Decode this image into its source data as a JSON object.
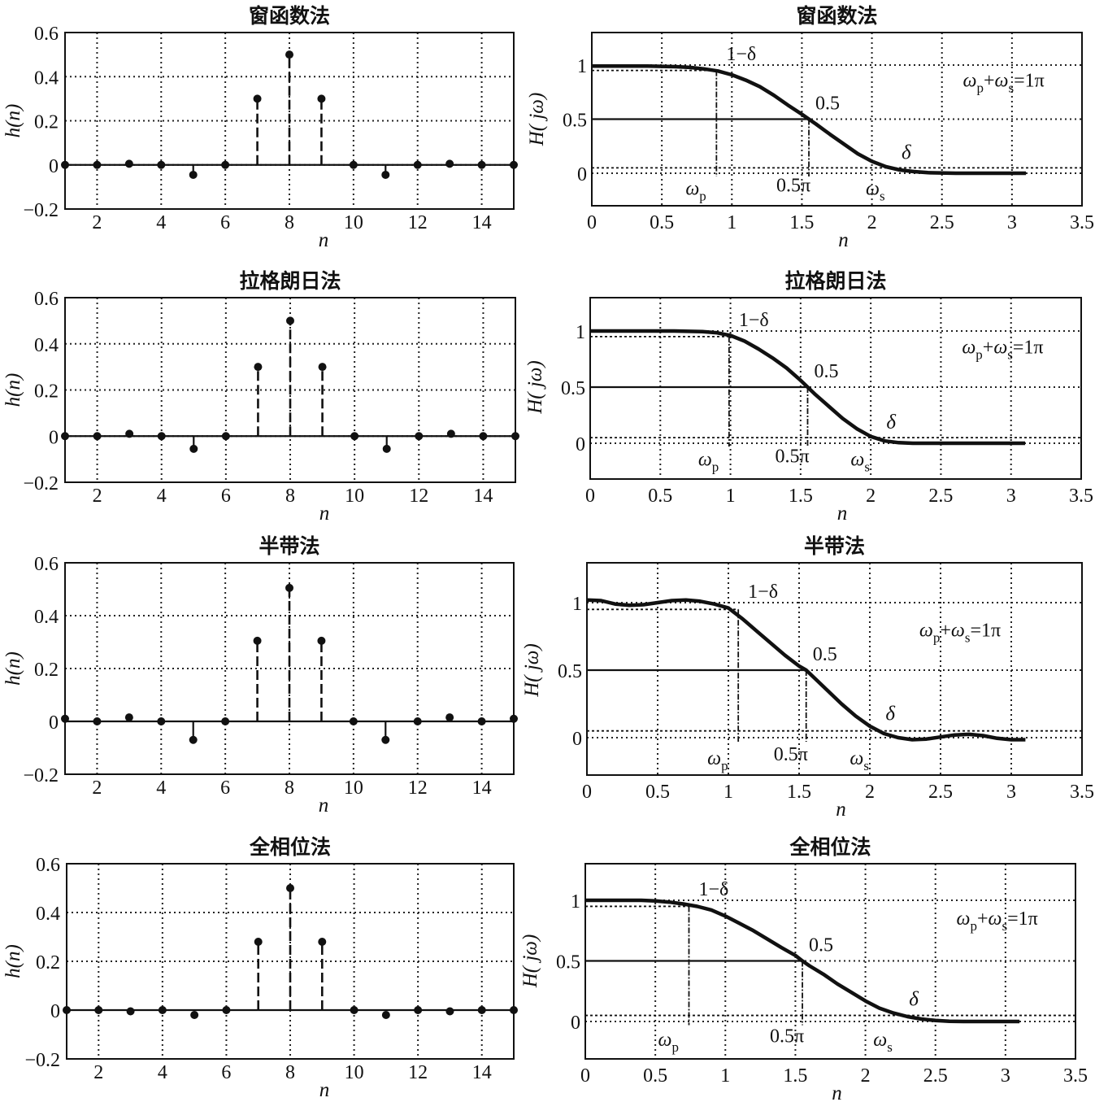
{
  "colors": {
    "ink": "#111111",
    "background": "#ffffff"
  },
  "chart_data": [
    {
      "id": "impulse-window",
      "type": "stem",
      "title": "窗函数法",
      "xlabel": "n",
      "ylabel": "h(n)",
      "xlim": [
        1,
        15
      ],
      "ylim": [
        -0.2,
        0.6
      ],
      "xticks": [
        "2",
        "4",
        "6",
        "8",
        "10",
        "12",
        "14"
      ],
      "yticks": [
        "0.6",
        "0.4",
        "0.2",
        "0",
        "−0.2"
      ],
      "x": [
        1,
        2,
        3,
        4,
        5,
        6,
        7,
        8,
        9,
        10,
        11,
        12,
        13,
        14,
        15
      ],
      "values": [
        0,
        0,
        0.005,
        0,
        -0.045,
        0,
        0.3,
        0.5,
        0.3,
        0,
        -0.045,
        0,
        0.005,
        0,
        0
      ],
      "grid": true
    },
    {
      "id": "response-window",
      "type": "line",
      "title": "窗函数法",
      "xlabel": "n",
      "ylabel": "H( jω)",
      "xlim": [
        0,
        3.5
      ],
      "ylim": [
        -0.25,
        1.25
      ],
      "xticks": [
        "0",
        "0.5",
        "1",
        "1.5",
        "2",
        "2.5",
        "3",
        "3.5"
      ],
      "yticks": [
        "1",
        "0.5",
        "0"
      ],
      "x": [
        0,
        0.2,
        0.4,
        0.6,
        0.7,
        0.8,
        0.9,
        1.0,
        1.1,
        1.2,
        1.3,
        1.4,
        1.5,
        1.55,
        1.6,
        1.7,
        1.8,
        1.9,
        2.0,
        2.1,
        2.2,
        2.3,
        2.4,
        2.6,
        2.8,
        3.1
      ],
      "y": [
        0.99,
        0.99,
        0.99,
        0.985,
        0.978,
        0.965,
        0.945,
        0.91,
        0.86,
        0.8,
        0.72,
        0.63,
        0.545,
        0.5,
        0.455,
        0.36,
        0.27,
        0.18,
        0.11,
        0.06,
        0.03,
        0.015,
        0.005,
        0,
        0,
        0
      ],
      "grid": true,
      "reference_lines": {
        "passband_y": 0.95,
        "half_y": 0.5,
        "stopband_y": 0.05,
        "omega_p_x": 0.89,
        "half_x": 1.55
      },
      "annotations": {
        "one_minus_delta": "1−δ",
        "half": "0.5",
        "delta": "δ",
        "omega_p": "ωp",
        "half_pi": "0.5π",
        "omega_s": "ωs",
        "formula": "ωp+ωs=1π"
      }
    },
    {
      "id": "impulse-lagrange",
      "type": "stem",
      "title": "拉格朗日法",
      "xlabel": "n",
      "ylabel": "h(n)",
      "xlim": [
        1,
        15
      ],
      "ylim": [
        -0.2,
        0.6
      ],
      "xticks": [
        "2",
        "4",
        "6",
        "8",
        "10",
        "12",
        "14"
      ],
      "yticks": [
        "0.6",
        "0.4",
        "0.2",
        "0",
        "−0.2"
      ],
      "x": [
        1,
        2,
        3,
        4,
        5,
        6,
        7,
        8,
        9,
        10,
        11,
        12,
        13,
        14,
        15
      ],
      "values": [
        0,
        0,
        0.01,
        0,
        -0.055,
        0,
        0.3,
        0.5,
        0.3,
        0,
        -0.055,
        0,
        0.01,
        0,
        0
      ],
      "grid": true
    },
    {
      "id": "response-lagrange",
      "type": "line",
      "title": "拉格朗日法",
      "xlabel": "n",
      "ylabel": "H( jω)",
      "xlim": [
        0,
        3.5
      ],
      "ylim": [
        -0.25,
        1.25
      ],
      "xticks": [
        "0",
        "0.5",
        "1",
        "1.5",
        "2",
        "2.5",
        "3",
        "3.5"
      ],
      "yticks": [
        "1",
        "0.5",
        "0"
      ],
      "x": [
        0,
        0.3,
        0.6,
        0.8,
        0.9,
        1.0,
        1.1,
        1.2,
        1.3,
        1.4,
        1.5,
        1.55,
        1.6,
        1.7,
        1.8,
        1.9,
        2.0,
        2.1,
        2.2,
        2.3,
        2.5,
        3.1
      ],
      "y": [
        1.0,
        1.0,
        1.0,
        0.995,
        0.985,
        0.96,
        0.91,
        0.84,
        0.76,
        0.67,
        0.56,
        0.5,
        0.44,
        0.33,
        0.22,
        0.13,
        0.06,
        0.02,
        0.005,
        0,
        0,
        0
      ],
      "grid": true,
      "reference_lines": {
        "passband_y": 0.95,
        "half_y": 0.5,
        "stopband_y": 0.05,
        "omega_p_x": 0.99,
        "half_x": 1.55
      },
      "annotations": {
        "one_minus_delta": "1−δ",
        "half": "0.5",
        "delta": "δ",
        "omega_p": "ωp",
        "half_pi": "0.5π",
        "omega_s": "ωs",
        "formula": "ωp+ωs=1π"
      }
    },
    {
      "id": "impulse-halfband",
      "type": "stem",
      "title": "半带法",
      "xlabel": "n",
      "ylabel": "h(n)",
      "xlim": [
        1,
        15
      ],
      "ylim": [
        -0.2,
        0.6
      ],
      "xticks": [
        "2",
        "4",
        "6",
        "8",
        "10",
        "12",
        "14"
      ],
      "yticks": [
        "0.6",
        "0.4",
        "0.2",
        "0",
        "−0.2"
      ],
      "x": [
        1,
        2,
        3,
        4,
        5,
        6,
        7,
        8,
        9,
        10,
        11,
        12,
        13,
        14,
        15
      ],
      "values": [
        0.01,
        0,
        0.015,
        0,
        -0.07,
        0,
        0.305,
        0.505,
        0.305,
        0,
        -0.07,
        0,
        0.015,
        0,
        0.01
      ],
      "grid": true
    },
    {
      "id": "response-halfband",
      "type": "line",
      "title": "半带法",
      "xlabel": "n",
      "ylabel": "H( jω)",
      "xlim": [
        0,
        3.5
      ],
      "ylim": [
        -0.25,
        1.25
      ],
      "xticks": [
        "0",
        "0.5",
        "1",
        "1.5",
        "2",
        "2.5",
        "3",
        "3.5"
      ],
      "yticks": [
        "1",
        "0.5",
        "0"
      ],
      "x": [
        0,
        0.1,
        0.2,
        0.3,
        0.4,
        0.5,
        0.6,
        0.7,
        0.8,
        0.9,
        1.0,
        1.1,
        1.2,
        1.3,
        1.4,
        1.5,
        1.55,
        1.6,
        1.7,
        1.8,
        1.9,
        2.0,
        2.1,
        2.2,
        2.3,
        2.4,
        2.5,
        2.6,
        2.7,
        2.8,
        2.9,
        3.0,
        3.1
      ],
      "y": [
        1.02,
        1.015,
        0.99,
        0.98,
        0.985,
        1.0,
        1.015,
        1.02,
        1.01,
        0.99,
        0.96,
        0.88,
        0.79,
        0.7,
        0.61,
        0.53,
        0.5,
        0.45,
        0.35,
        0.25,
        0.16,
        0.085,
        0.03,
        0.0,
        -0.015,
        -0.01,
        0.005,
        0.02,
        0.025,
        0.015,
        -0.005,
        -0.015,
        -0.015
      ],
      "grid": true,
      "reference_lines": {
        "passband_y": 0.95,
        "half_y": 0.5,
        "stopband_y": 0.05,
        "omega_p_x": 1.07,
        "half_x": 1.55
      },
      "annotations": {
        "one_minus_delta": "1−δ",
        "half": "0.5",
        "delta": "δ",
        "omega_p": "ωp",
        "half_pi": "0.5π",
        "omega_s": "ωs",
        "formula": "ωp+ωs=1π"
      }
    },
    {
      "id": "impulse-allphase",
      "type": "stem",
      "title": "全相位法",
      "xlabel": "n",
      "ylabel": "h(n)",
      "xlim": [
        1,
        15
      ],
      "ylim": [
        -0.2,
        0.6
      ],
      "xticks": [
        "2",
        "4",
        "6",
        "8",
        "10",
        "12",
        "14"
      ],
      "yticks": [
        "0.6",
        "0.4",
        "0.2",
        "0",
        "−0.2"
      ],
      "x": [
        1,
        2,
        3,
        4,
        5,
        6,
        7,
        8,
        9,
        10,
        11,
        12,
        13,
        14,
        15
      ],
      "values": [
        0,
        0,
        -0.005,
        0,
        -0.02,
        0,
        0.28,
        0.5,
        0.28,
        0,
        -0.02,
        0,
        -0.005,
        0,
        0
      ],
      "grid": true
    },
    {
      "id": "response-allphase",
      "type": "line",
      "title": "全相位法",
      "xlabel": "n",
      "ylabel": "H( jω)",
      "xlim": [
        0,
        3.5
      ],
      "ylim": [
        -0.25,
        1.25
      ],
      "xticks": [
        "0",
        "0.5",
        "1",
        "1.5",
        "2",
        "2.5",
        "3",
        "3.5"
      ],
      "yticks": [
        "1",
        "0.5",
        "0"
      ],
      "x": [
        0,
        0.2,
        0.4,
        0.5,
        0.6,
        0.7,
        0.8,
        0.9,
        1.0,
        1.1,
        1.2,
        1.3,
        1.4,
        1.5,
        1.55,
        1.6,
        1.7,
        1.8,
        1.9,
        2.0,
        2.1,
        2.2,
        2.3,
        2.4,
        2.5,
        2.6,
        2.7,
        2.8,
        3.1
      ],
      "y": [
        1.0,
        1.0,
        1.0,
        0.995,
        0.985,
        0.97,
        0.95,
        0.92,
        0.87,
        0.81,
        0.75,
        0.68,
        0.61,
        0.545,
        0.5,
        0.46,
        0.39,
        0.31,
        0.24,
        0.17,
        0.11,
        0.07,
        0.04,
        0.02,
        0.008,
        0.002,
        0,
        0,
        0
      ],
      "grid": true,
      "reference_lines": {
        "passband_y": 0.95,
        "half_y": 0.5,
        "stopband_y": 0.05,
        "omega_p_x": 0.74,
        "half_x": 1.55
      },
      "annotations": {
        "one_minus_delta": "1−δ",
        "half": "0.5",
        "delta": "δ",
        "omega_p": "ωp",
        "half_pi": "0.5π",
        "omega_s": "ωs",
        "formula": "ωp+ωs=1π"
      }
    }
  ]
}
